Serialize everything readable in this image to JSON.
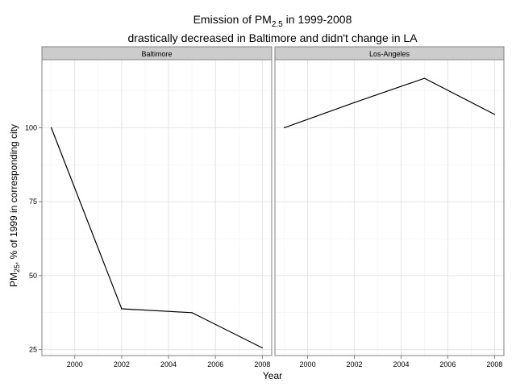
{
  "chart_data": {
    "type": "line",
    "title_line1_prefix": "Emission of PM",
    "title_line1_sub": "2.5",
    "title_line1_suffix": " in 1999-2008",
    "title_line2": "drastically decreased in Baltimore and didn't change in LA",
    "xlabel": "Year",
    "ylabel_prefix": "PM",
    "ylabel_sub": "25",
    "ylabel_suffix": ", % of 1999 in corresponding city",
    "xlim": [
      1998.6,
      2008.4
    ],
    "ylim": [
      23,
      123
    ],
    "x_ticks": [
      2000,
      2002,
      2004,
      2006,
      2008
    ],
    "y_ticks": [
      25,
      50,
      75,
      100
    ],
    "grid": true,
    "panels": [
      {
        "name": "Baltimore",
        "x": [
          1999,
          2002,
          2005,
          2008
        ],
        "values": [
          100,
          38.8,
          37.5,
          25.6
        ]
      },
      {
        "name": "Los-Angeles",
        "x": [
          1999,
          2002,
          2005,
          2008
        ],
        "values": [
          100,
          108.5,
          116.7,
          104.5
        ]
      }
    ],
    "colors": {
      "panel_border": "#808080",
      "strip_fill": "#cccccc",
      "grid_major": "#e5e5e5",
      "grid_minor": "#f2f2f2",
      "line": "#000000"
    }
  }
}
